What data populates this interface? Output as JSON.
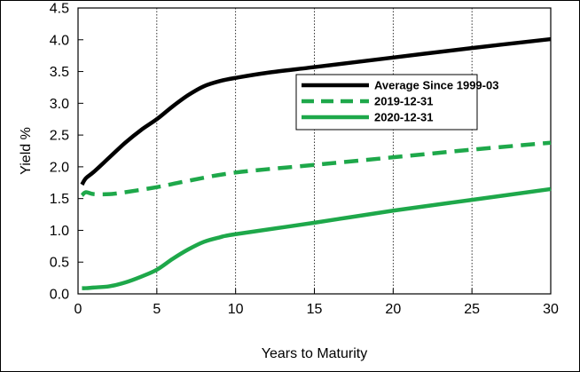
{
  "chart_data": {
    "type": "line",
    "title": "",
    "xlabel": "Years to Maturity",
    "ylabel": "Yield %",
    "xlim": [
      0,
      30
    ],
    "ylim": [
      0.0,
      4.5
    ],
    "x_ticks": [
      0,
      5,
      10,
      15,
      20,
      25,
      30
    ],
    "y_ticks": [
      0.0,
      0.5,
      1.0,
      1.5,
      2.0,
      2.5,
      3.0,
      3.5,
      4.0,
      4.5
    ],
    "y_tick_labels": [
      "0.0",
      "0.5",
      "1.0",
      "1.5",
      "2.0",
      "2.5",
      "3.0",
      "3.5",
      "4.0",
      "4.5"
    ],
    "x_tick_labels": [
      "0",
      "5",
      "10",
      "15",
      "20",
      "25",
      "30"
    ],
    "grid": "vertical",
    "legend_position": "upper-right",
    "series": [
      {
        "name": "Average Since 1999-03",
        "color": "#000000",
        "style": "solid",
        "x": [
          0.25,
          0.5,
          1,
          2,
          3,
          4,
          5,
          6,
          7,
          8,
          9,
          10,
          12,
          15,
          20,
          25,
          30
        ],
        "y": [
          1.72,
          1.82,
          1.92,
          2.15,
          2.38,
          2.58,
          2.75,
          2.95,
          3.13,
          3.27,
          3.35,
          3.4,
          3.48,
          3.57,
          3.72,
          3.87,
          4.01
        ]
      },
      {
        "name": "2019-12-31",
        "color": "#1ea84a",
        "style": "dashed",
        "x": [
          0.25,
          0.5,
          1,
          2,
          3,
          5,
          7,
          10,
          15,
          20,
          25,
          30
        ],
        "y": [
          1.55,
          1.6,
          1.57,
          1.57,
          1.6,
          1.68,
          1.78,
          1.91,
          2.03,
          2.15,
          2.27,
          2.38
        ]
      },
      {
        "name": "2020-12-31",
        "color": "#1ea84a",
        "style": "solid",
        "x": [
          0.25,
          0.5,
          1,
          2,
          3,
          4,
          5,
          6,
          7,
          8,
          9,
          10,
          15,
          20,
          25,
          30
        ],
        "y": [
          0.09,
          0.09,
          0.1,
          0.12,
          0.18,
          0.27,
          0.38,
          0.55,
          0.7,
          0.82,
          0.89,
          0.94,
          1.12,
          1.31,
          1.48,
          1.65
        ]
      }
    ]
  }
}
